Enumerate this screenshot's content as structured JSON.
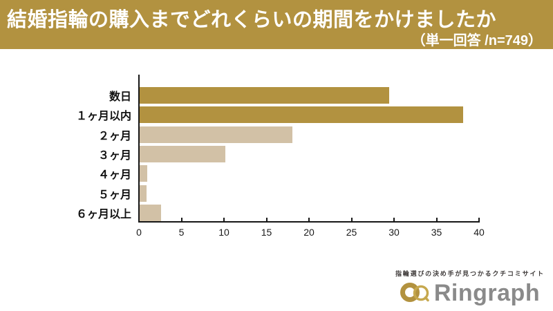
{
  "header": {
    "bg_color": "#b29240",
    "text_color": "#ffffff"
  },
  "chart_data": {
    "type": "bar",
    "orientation": "horizontal",
    "title": "結婚指輪の購入までどれくらいの期間をかけましたか",
    "subtitle": "（単一回答 /n=749）",
    "categories": [
      "数日",
      "１ヶ月以内",
      "２ヶ月",
      "３ヶ月",
      "４ヶ月",
      "５ヶ月",
      "６ヶ月以上"
    ],
    "values": [
      29.5,
      38.2,
      18.0,
      10.1,
      0.9,
      0.8,
      2.5
    ],
    "unit": "%",
    "xlabel": "",
    "ylabel": "",
    "xlim": [
      0,
      40
    ],
    "xticks": [
      0,
      5,
      10,
      15,
      20,
      25,
      30,
      35,
      40
    ],
    "grid": false,
    "legend": false,
    "bar_colors": [
      "#b29240",
      "#b29240",
      "#d2c1a6",
      "#d2c1a6",
      "#d2c1a6",
      "#d2c1a6",
      "#d2c1a6"
    ],
    "axis_color": "#161616"
  },
  "logo": {
    "tagline": "指輪選びの決め手が見つかるクチコミサイト",
    "wordmark": "Ringraph",
    "wordmark_color": "#8a8a8a",
    "ring_color": "#b2923f",
    "icon": "interlocking-rings-icon"
  }
}
